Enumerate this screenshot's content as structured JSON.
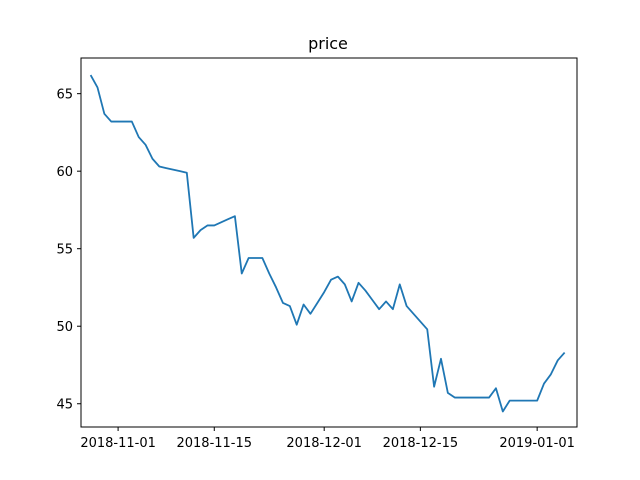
{
  "chart_data": {
    "type": "line",
    "title": "price",
    "xlabel": "",
    "ylabel": "",
    "grid": false,
    "legend": "none",
    "x_tick_labels": [
      "2018-11-01",
      "2018-11-15",
      "2018-12-01",
      "2018-12-15",
      "2019-01-01"
    ],
    "x_tick_days": [
      4,
      18,
      34,
      48,
      65
    ],
    "y_ticks": [
      45,
      50,
      55,
      60,
      65
    ],
    "xlim_days": [
      -1.4,
      70.8
    ],
    "ylim": [
      43.5,
      67.3
    ],
    "series": [
      {
        "name": "price",
        "color": "#1f77b4",
        "x_days": [
          0,
          1,
          2,
          3,
          4,
          5,
          6,
          7,
          8,
          9,
          10,
          11,
          12,
          13,
          14,
          15,
          16,
          17,
          18,
          19,
          20,
          21,
          22,
          23,
          24,
          25,
          26,
          27,
          28,
          29,
          30,
          31,
          32,
          33,
          34,
          35,
          36,
          37,
          38,
          39,
          40,
          41,
          42,
          43,
          44,
          45,
          46,
          47,
          48,
          49,
          50,
          51,
          52,
          53,
          54,
          55,
          56,
          57,
          58,
          59,
          60,
          61,
          62,
          63,
          64,
          65,
          66,
          67,
          68,
          69
        ],
        "y": [
          66.2,
          65.4,
          63.7,
          63.2,
          63.2,
          63.2,
          63.2,
          62.2,
          61.7,
          60.8,
          60.3,
          60.2,
          60.1,
          60.0,
          59.9,
          55.7,
          56.2,
          56.5,
          56.5,
          56.7,
          56.9,
          57.1,
          53.4,
          54.4,
          54.4,
          54.4,
          53.4,
          52.5,
          51.5,
          51.3,
          50.1,
          51.4,
          50.8,
          51.5,
          52.2,
          53.0,
          53.2,
          52.7,
          51.6,
          52.8,
          52.3,
          51.7,
          51.1,
          51.6,
          51.1,
          52.7,
          51.3,
          50.8,
          50.3,
          49.8,
          46.1,
          47.9,
          45.7,
          45.4,
          45.4,
          45.4,
          45.4,
          45.4,
          45.4,
          46.0,
          44.5,
          45.2,
          45.2,
          45.2,
          45.2,
          45.2,
          46.3,
          46.9,
          47.8,
          48.3
        ]
      }
    ]
  }
}
